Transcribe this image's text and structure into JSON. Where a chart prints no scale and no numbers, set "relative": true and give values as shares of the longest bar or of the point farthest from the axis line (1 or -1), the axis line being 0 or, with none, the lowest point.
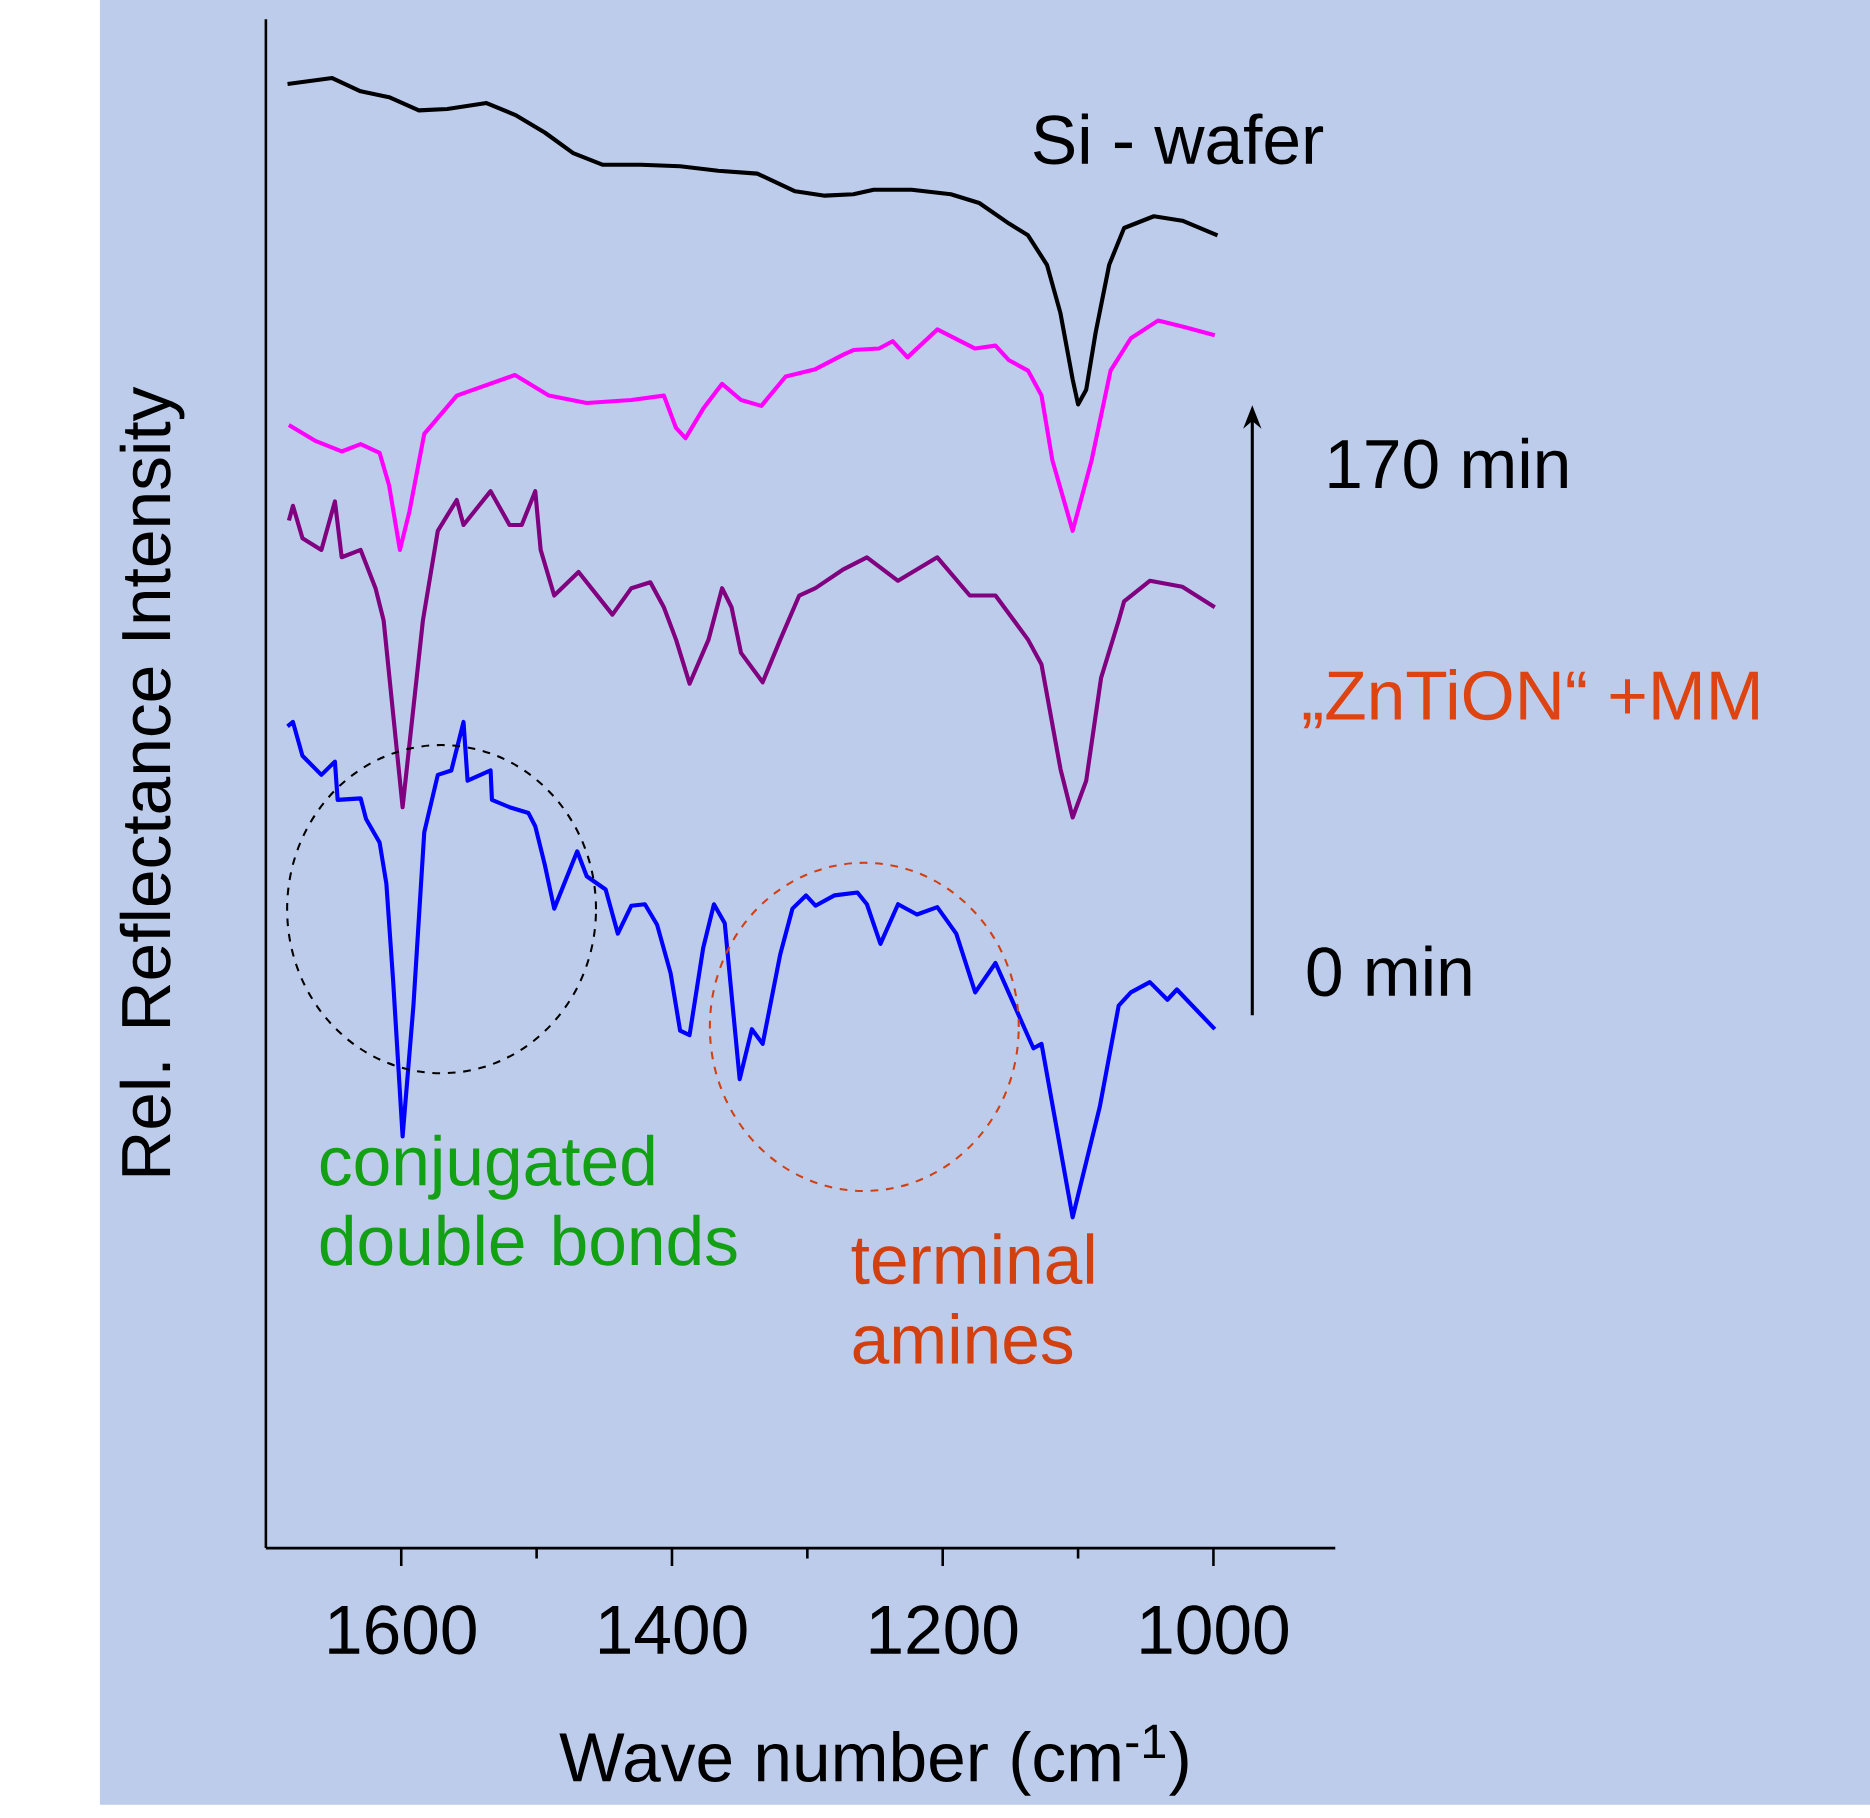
{
  "chart_data": {
    "type": "line",
    "relative": true,
    "xlabel": "Wave number (cm$^{-1}$)",
    "ylabel": "Rel. Reflectance Intensity",
    "xlim": [
      1700,
      910
    ],
    "xticks": [
      1600,
      1400,
      1200,
      1000
    ],
    "annotations": [
      "170 min",
      "„ZnTiON“ +MM",
      "0 min",
      "conjugated double bonds",
      "terminal amines"
    ],
    "series": [
      {
        "name": "Si - wafer",
        "color": "#000000",
        "x": [
          1684,
          1651,
          1630,
          1609,
          1587,
          1566,
          1537,
          1516,
          1494,
          1473,
          1451,
          1423,
          1394,
          1366,
          1337,
          1309,
          1287,
          1266,
          1251,
          1223,
          1194,
          1173,
          1151,
          1137,
          1123,
          1113,
          1104,
          1100,
          1094,
          1087,
          1077,
          1066,
          1044,
          1023,
          997
        ],
        "values": [
          0.996,
          1.0,
          0.991,
          0.987,
          0.978,
          0.979,
          0.983,
          0.975,
          0.963,
          0.949,
          0.941,
          0.941,
          0.94,
          0.937,
          0.935,
          0.923,
          0.92,
          0.921,
          0.924,
          0.924,
          0.921,
          0.915,
          0.901,
          0.893,
          0.873,
          0.84,
          0.795,
          0.778,
          0.788,
          0.827,
          0.873,
          0.898,
          0.906,
          0.903,
          0.893
        ]
      },
      {
        "color": "#ff00ff",
        "x": [
          1683,
          1663,
          1644,
          1630,
          1616,
          1609,
          1601,
          1594,
          1583,
          1559,
          1516,
          1491,
          1463,
          1430,
          1406,
          1397,
          1390,
          1377,
          1363,
          1349,
          1334,
          1316,
          1294,
          1273,
          1266,
          1247,
          1237,
          1226,
          1204,
          1176,
          1161,
          1151,
          1137,
          1127,
          1119,
          1104,
          1090,
          1076,
          1061,
          1041,
          1023,
          999
        ],
        "values": [
          0.764,
          0.753,
          0.746,
          0.751,
          0.745,
          0.723,
          0.679,
          0.705,
          0.758,
          0.784,
          0.798,
          0.784,
          0.779,
          0.781,
          0.784,
          0.762,
          0.755,
          0.775,
          0.792,
          0.781,
          0.777,
          0.797,
          0.802,
          0.812,
          0.815,
          0.816,
          0.821,
          0.81,
          0.829,
          0.816,
          0.818,
          0.808,
          0.801,
          0.784,
          0.74,
          0.692,
          0.74,
          0.801,
          0.823,
          0.835,
          0.831,
          0.825
        ]
      },
      {
        "color": "#800080",
        "x": [
          1683,
          1680,
          1673,
          1659,
          1649,
          1644,
          1630,
          1619,
          1613,
          1599,
          1584,
          1573,
          1559,
          1554,
          1534,
          1520,
          1511,
          1501,
          1497,
          1487,
          1469,
          1444,
          1430,
          1416,
          1406,
          1397,
          1387,
          1373,
          1363,
          1356,
          1349,
          1333,
          1320,
          1306,
          1294,
          1273,
          1256,
          1233,
          1204,
          1180,
          1161,
          1137,
          1127,
          1113,
          1104,
          1094,
          1083,
          1070,
          1066,
          1047,
          1023,
          999
        ],
        "values": [
          0.699,
          0.709,
          0.687,
          0.679,
          0.712,
          0.674,
          0.679,
          0.653,
          0.631,
          0.504,
          0.631,
          0.692,
          0.713,
          0.696,
          0.719,
          0.696,
          0.696,
          0.719,
          0.679,
          0.648,
          0.664,
          0.635,
          0.653,
          0.657,
          0.64,
          0.618,
          0.588,
          0.618,
          0.653,
          0.64,
          0.609,
          0.589,
          0.618,
          0.648,
          0.653,
          0.666,
          0.674,
          0.658,
          0.674,
          0.648,
          0.648,
          0.618,
          0.601,
          0.53,
          0.497,
          0.522,
          0.592,
          0.631,
          0.644,
          0.658,
          0.654,
          0.64
        ]
      },
      {
        "color": "#0000ff",
        "x": [
          1684,
          1680,
          1673,
          1659,
          1649,
          1647,
          1630,
          1626,
          1616,
          1611,
          1606,
          1599,
          1591,
          1583,
          1573,
          1563,
          1554,
          1551,
          1534,
          1533,
          1520,
          1506,
          1501,
          1494,
          1487,
          1470,
          1463,
          1449,
          1440,
          1430,
          1420,
          1411,
          1401,
          1394,
          1387,
          1377,
          1369,
          1361,
          1350,
          1341,
          1333,
          1320,
          1311,
          1301,
          1294,
          1280,
          1263,
          1256,
          1246,
          1233,
          1219,
          1204,
          1190,
          1176,
          1161,
          1147,
          1133,
          1127,
          1104,
          1084,
          1070,
          1061,
          1047,
          1034,
          1027,
          999
        ],
        "values": [
          0.559,
          0.562,
          0.539,
          0.526,
          0.535,
          0.509,
          0.51,
          0.496,
          0.48,
          0.452,
          0.386,
          0.28,
          0.369,
          0.487,
          0.526,
          0.529,
          0.562,
          0.522,
          0.529,
          0.509,
          0.504,
          0.5,
          0.491,
          0.465,
          0.435,
          0.474,
          0.457,
          0.448,
          0.418,
          0.437,
          0.438,
          0.424,
          0.391,
          0.352,
          0.349,
          0.408,
          0.438,
          0.425,
          0.319,
          0.353,
          0.343,
          0.404,
          0.435,
          0.444,
          0.437,
          0.444,
          0.446,
          0.438,
          0.411,
          0.438,
          0.431,
          0.436,
          0.418,
          0.378,
          0.398,
          0.369,
          0.34,
          0.343,
          0.225,
          0.3,
          0.369,
          0.378,
          0.385,
          0.373,
          0.38,
          0.353
        ]
      }
    ]
  }
}
